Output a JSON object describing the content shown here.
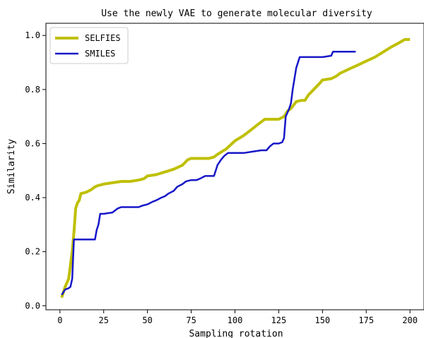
{
  "chart_data": {
    "type": "line",
    "title": "Use the newly VAE to generate molecular diversity",
    "xlabel": "Sampling rotation",
    "ylabel": "Similarity",
    "xlim": [
      -8,
      208
    ],
    "ylim": [
      -0.015,
      1.045
    ],
    "xticks": [
      0,
      25,
      50,
      75,
      100,
      125,
      150,
      175,
      200
    ],
    "yticks": [
      0.0,
      0.2,
      0.4,
      0.6,
      0.8,
      1.0
    ],
    "xtick_labels": [
      "0",
      "25",
      "50",
      "75",
      "100",
      "125",
      "150",
      "175",
      "200"
    ],
    "ytick_labels": [
      "0.0",
      "0.2",
      "0.4",
      "0.6",
      "0.8",
      "1.0"
    ],
    "grid": false,
    "legend_position": "upper-left",
    "series": [
      {
        "name": "SELFIES",
        "color": "#bfbf00",
        "points": [
          [
            1,
            0.03
          ],
          [
            3,
            0.07
          ],
          [
            5,
            0.1
          ],
          [
            6,
            0.15
          ],
          [
            7,
            0.2
          ],
          [
            8,
            0.27
          ],
          [
            9,
            0.36
          ],
          [
            10,
            0.38
          ],
          [
            11,
            0.39
          ],
          [
            12,
            0.415
          ],
          [
            15,
            0.42
          ],
          [
            18,
            0.43
          ],
          [
            20,
            0.44
          ],
          [
            22,
            0.445
          ],
          [
            25,
            0.45
          ],
          [
            30,
            0.455
          ],
          [
            35,
            0.46
          ],
          [
            40,
            0.46
          ],
          [
            45,
            0.465
          ],
          [
            48,
            0.47
          ],
          [
            50,
            0.48
          ],
          [
            55,
            0.485
          ],
          [
            60,
            0.495
          ],
          [
            65,
            0.505
          ],
          [
            70,
            0.52
          ],
          [
            73,
            0.54
          ],
          [
            75,
            0.545
          ],
          [
            80,
            0.545
          ],
          [
            85,
            0.545
          ],
          [
            88,
            0.55
          ],
          [
            90,
            0.56
          ],
          [
            95,
            0.58
          ],
          [
            100,
            0.61
          ],
          [
            105,
            0.63
          ],
          [
            110,
            0.655
          ],
          [
            113,
            0.67
          ],
          [
            115,
            0.68
          ],
          [
            117,
            0.69
          ],
          [
            120,
            0.69
          ],
          [
            125,
            0.69
          ],
          [
            128,
            0.7
          ],
          [
            130,
            0.72
          ],
          [
            132,
            0.73
          ],
          [
            135,
            0.755
          ],
          [
            138,
            0.76
          ],
          [
            140,
            0.76
          ],
          [
            142,
            0.78
          ],
          [
            145,
            0.8
          ],
          [
            148,
            0.82
          ],
          [
            150,
            0.835
          ],
          [
            155,
            0.84
          ],
          [
            158,
            0.85
          ],
          [
            160,
            0.86
          ],
          [
            165,
            0.875
          ],
          [
            170,
            0.89
          ],
          [
            175,
            0.905
          ],
          [
            180,
            0.92
          ],
          [
            185,
            0.94
          ],
          [
            190,
            0.96
          ],
          [
            193,
            0.97
          ],
          [
            197,
            0.985
          ],
          [
            200,
            0.985
          ]
        ]
      },
      {
        "name": "SMILES",
        "color": "#1717c8",
        "points": [
          [
            1,
            0.04
          ],
          [
            2,
            0.05
          ],
          [
            3,
            0.06
          ],
          [
            5,
            0.065
          ],
          [
            6,
            0.07
          ],
          [
            7,
            0.1
          ],
          [
            8,
            0.245
          ],
          [
            10,
            0.245
          ],
          [
            13,
            0.245
          ],
          [
            15,
            0.245
          ],
          [
            20,
            0.245
          ],
          [
            21,
            0.28
          ],
          [
            22,
            0.3
          ],
          [
            23,
            0.34
          ],
          [
            25,
            0.34
          ],
          [
            30,
            0.345
          ],
          [
            33,
            0.36
          ],
          [
            35,
            0.365
          ],
          [
            40,
            0.365
          ],
          [
            45,
            0.365
          ],
          [
            47,
            0.37
          ],
          [
            50,
            0.375
          ],
          [
            53,
            0.385
          ],
          [
            55,
            0.39
          ],
          [
            58,
            0.4
          ],
          [
            60,
            0.405
          ],
          [
            62,
            0.415
          ],
          [
            65,
            0.425
          ],
          [
            67,
            0.44
          ],
          [
            70,
            0.45
          ],
          [
            72,
            0.46
          ],
          [
            75,
            0.465
          ],
          [
            78,
            0.465
          ],
          [
            80,
            0.47
          ],
          [
            83,
            0.48
          ],
          [
            85,
            0.48
          ],
          [
            88,
            0.48
          ],
          [
            89,
            0.5
          ],
          [
            90,
            0.52
          ],
          [
            92,
            0.54
          ],
          [
            94,
            0.555
          ],
          [
            96,
            0.565
          ],
          [
            100,
            0.565
          ],
          [
            105,
            0.565
          ],
          [
            110,
            0.57
          ],
          [
            115,
            0.575
          ],
          [
            118,
            0.575
          ],
          [
            120,
            0.59
          ],
          [
            122,
            0.6
          ],
          [
            125,
            0.6
          ],
          [
            127,
            0.605
          ],
          [
            128,
            0.62
          ],
          [
            129,
            0.7
          ],
          [
            131,
            0.73
          ],
          [
            132,
            0.75
          ],
          [
            133,
            0.8
          ],
          [
            135,
            0.88
          ],
          [
            137,
            0.92
          ],
          [
            140,
            0.92
          ],
          [
            145,
            0.92
          ],
          [
            150,
            0.92
          ],
          [
            155,
            0.925
          ],
          [
            156,
            0.94
          ],
          [
            160,
            0.94
          ],
          [
            165,
            0.94
          ],
          [
            169,
            0.94
          ]
        ]
      }
    ]
  }
}
